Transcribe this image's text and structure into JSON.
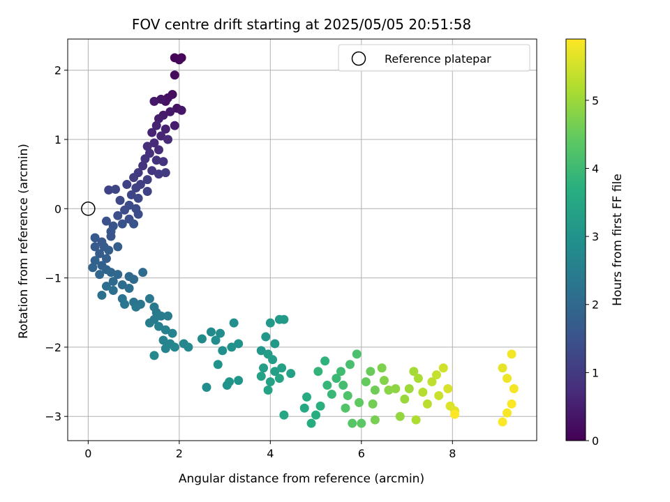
{
  "chart_data": {
    "type": "scatter",
    "title": "FOV centre drift starting at 2025/05/05 20:51:58",
    "xlabel": "Angular distance from reference (arcmin)",
    "ylabel": "Rotation from reference (arcmin)",
    "xlim": [
      -0.45,
      9.85
    ],
    "ylim": [
      -3.35,
      2.45
    ],
    "xticks": [
      0,
      2,
      4,
      6,
      8
    ],
    "yticks": [
      -3,
      -2,
      -1,
      0,
      1,
      2
    ],
    "grid": true,
    "legend": {
      "position": "top-right",
      "entries": [
        "Reference platepar"
      ]
    },
    "reference_point": {
      "x": 0,
      "y": 0,
      "label": "Reference platepar"
    },
    "colorbar": {
      "label": "Hours from first FF file",
      "colormap": "viridis",
      "range": [
        0,
        5.9
      ],
      "ticks": [
        0,
        1,
        2,
        3,
        4,
        5
      ]
    },
    "points": [
      [
        1.9,
        2.18,
        0.05
      ],
      [
        2.05,
        2.18,
        0.05
      ],
      [
        2.0,
        2.15,
        0.1
      ],
      [
        1.9,
        1.93,
        0.15
      ],
      [
        1.85,
        1.65,
        0.2
      ],
      [
        1.75,
        1.6,
        0.25
      ],
      [
        1.7,
        1.55,
        0.3
      ],
      [
        1.6,
        1.58,
        0.35
      ],
      [
        1.45,
        1.55,
        0.4
      ],
      [
        1.95,
        1.45,
        0.3
      ],
      [
        2.05,
        1.42,
        0.35
      ],
      [
        1.8,
        1.4,
        0.4
      ],
      [
        1.65,
        1.35,
        0.45
      ],
      [
        1.55,
        1.3,
        0.5
      ],
      [
        1.9,
        1.2,
        0.45
      ],
      [
        1.7,
        1.15,
        0.55
      ],
      [
        1.5,
        1.2,
        0.6
      ],
      [
        1.4,
        1.1,
        0.6
      ],
      [
        1.6,
        1.05,
        0.65
      ],
      [
        1.75,
        1.0,
        0.7
      ],
      [
        1.45,
        0.95,
        0.7
      ],
      [
        1.3,
        0.9,
        0.75
      ],
      [
        1.55,
        0.85,
        0.75
      ],
      [
        1.35,
        0.8,
        0.8
      ],
      [
        1.25,
        0.72,
        0.85
      ],
      [
        1.5,
        0.7,
        0.85
      ],
      [
        1.65,
        0.68,
        0.9
      ],
      [
        1.2,
        0.62,
        0.9
      ],
      [
        1.4,
        0.55,
        0.95
      ],
      [
        1.1,
        0.52,
        1.0
      ],
      [
        1.55,
        0.5,
        1.0
      ],
      [
        1.7,
        0.52,
        1.05
      ],
      [
        1.0,
        0.45,
        1.05
      ],
      [
        1.3,
        0.42,
        1.1
      ],
      [
        1.15,
        0.35,
        1.1
      ],
      [
        0.85,
        0.35,
        1.15
      ],
      [
        1.05,
        0.3,
        1.15
      ],
      [
        1.3,
        0.25,
        1.2
      ],
      [
        0.45,
        0.27,
        1.2
      ],
      [
        0.6,
        0.28,
        1.25
      ],
      [
        0.95,
        0.2,
        1.25
      ],
      [
        1.1,
        0.15,
        1.3
      ],
      [
        0.7,
        0.12,
        1.3
      ],
      [
        0.9,
        0.05,
        1.35
      ],
      [
        1.05,
        0.0,
        1.35
      ],
      [
        0.8,
        -0.02,
        1.4
      ],
      [
        1.1,
        -0.08,
        1.4
      ],
      [
        0.65,
        -0.1,
        1.45
      ],
      [
        0.9,
        -0.15,
        1.45
      ],
      [
        0.4,
        -0.18,
        1.5
      ],
      [
        0.75,
        -0.22,
        1.5
      ],
      [
        1.0,
        -0.22,
        1.55
      ],
      [
        0.55,
        -0.25,
        1.55
      ],
      [
        0.5,
        -0.33,
        1.6
      ],
      [
        0.5,
        -0.4,
        1.6
      ],
      [
        0.15,
        -0.42,
        1.65
      ],
      [
        0.3,
        -0.48,
        1.65
      ],
      [
        0.15,
        -0.55,
        1.7
      ],
      [
        0.35,
        -0.55,
        1.7
      ],
      [
        0.45,
        -0.6,
        1.75
      ],
      [
        0.25,
        -0.65,
        1.75
      ],
      [
        0.65,
        -0.55,
        1.8
      ],
      [
        0.4,
        -0.72,
        1.8
      ],
      [
        0.15,
        -0.75,
        1.85
      ],
      [
        0.3,
        -0.82,
        1.85
      ],
      [
        0.1,
        -0.85,
        1.9
      ],
      [
        0.4,
        -0.88,
        1.9
      ],
      [
        0.25,
        -0.95,
        1.95
      ],
      [
        0.5,
        -0.92,
        1.95
      ],
      [
        0.65,
        -0.95,
        2.0
      ],
      [
        0.9,
        -0.98,
        2.0
      ],
      [
        0.55,
        -1.05,
        2.05
      ],
      [
        1.0,
        -1.02,
        2.05
      ],
      [
        1.2,
        -0.92,
        2.1
      ],
      [
        0.75,
        -1.1,
        2.1
      ],
      [
        0.4,
        -1.12,
        2.15
      ],
      [
        0.9,
        -1.15,
        2.15
      ],
      [
        0.55,
        -1.18,
        2.2
      ],
      [
        0.3,
        -1.25,
        2.2
      ],
      [
        0.75,
        -1.3,
        2.25
      ],
      [
        1.0,
        -1.35,
        2.25
      ],
      [
        0.8,
        -1.38,
        2.3
      ],
      [
        1.15,
        -1.38,
        2.3
      ],
      [
        1.05,
        -1.42,
        2.35
      ],
      [
        1.35,
        -1.3,
        2.35
      ],
      [
        1.45,
        -1.42,
        2.4
      ],
      [
        1.5,
        -1.5,
        2.4
      ],
      [
        1.45,
        -1.6,
        2.45
      ],
      [
        1.6,
        -1.55,
        2.45
      ],
      [
        1.75,
        -1.55,
        2.5
      ],
      [
        1.35,
        -1.65,
        2.5
      ],
      [
        1.55,
        -1.7,
        2.55
      ],
      [
        1.7,
        -1.75,
        2.55
      ],
      [
        1.85,
        -1.8,
        2.6
      ],
      [
        1.65,
        -1.9,
        2.6
      ],
      [
        1.8,
        -1.95,
        2.65
      ],
      [
        1.7,
        -2.02,
        2.65
      ],
      [
        1.9,
        -2.0,
        2.7
      ],
      [
        2.1,
        -1.95,
        2.7
      ],
      [
        2.2,
        -2.0,
        2.75
      ],
      [
        1.45,
        -2.12,
        2.75
      ],
      [
        2.5,
        -1.88,
        2.8
      ],
      [
        2.7,
        -1.78,
        2.8
      ],
      [
        2.9,
        -1.8,
        2.85
      ],
      [
        2.8,
        -1.9,
        2.85
      ],
      [
        2.6,
        -2.58,
        2.85
      ],
      [
        2.95,
        -2.05,
        2.9
      ],
      [
        3.2,
        -1.65,
        2.9
      ],
      [
        3.3,
        -1.95,
        2.95
      ],
      [
        3.15,
        -2.0,
        2.95
      ],
      [
        2.85,
        -2.25,
        3.0
      ],
      [
        3.05,
        -2.55,
        3.0
      ],
      [
        3.1,
        -2.5,
        3.05
      ],
      [
        3.3,
        -2.48,
        3.05
      ],
      [
        3.8,
        -2.05,
        3.1
      ],
      [
        3.9,
        -1.85,
        3.1
      ],
      [
        4.0,
        -1.65,
        3.15
      ],
      [
        4.2,
        -1.6,
        3.15
      ],
      [
        4.3,
        -1.6,
        3.2
      ],
      [
        4.1,
        -1.95,
        3.2
      ],
      [
        3.95,
        -2.1,
        3.25
      ],
      [
        4.05,
        -2.18,
        3.25
      ],
      [
        3.85,
        -2.3,
        3.3
      ],
      [
        4.1,
        -2.35,
        3.3
      ],
      [
        4.25,
        -2.3,
        3.35
      ],
      [
        4.45,
        -2.38,
        3.35
      ],
      [
        3.8,
        -2.42,
        3.4
      ],
      [
        4.0,
        -2.5,
        3.4
      ],
      [
        4.2,
        -2.45,
        3.45
      ],
      [
        3.95,
        -2.62,
        3.45
      ],
      [
        4.3,
        -2.98,
        3.5
      ],
      [
        4.75,
        -2.88,
        3.55
      ],
      [
        4.8,
        -2.72,
        3.6
      ],
      [
        4.9,
        -3.1,
        3.65
      ],
      [
        5.0,
        -2.98,
        3.7
      ],
      [
        5.1,
        -2.85,
        3.75
      ],
      [
        5.2,
        -2.2,
        3.8
      ],
      [
        5.05,
        -2.35,
        3.85
      ],
      [
        5.25,
        -2.55,
        3.9
      ],
      [
        5.35,
        -2.68,
        3.95
      ],
      [
        5.45,
        -2.45,
        4.0
      ],
      [
        5.55,
        -2.35,
        4.05
      ],
      [
        5.6,
        -2.55,
        4.1
      ],
      [
        5.75,
        -2.25,
        4.15
      ],
      [
        5.9,
        -2.1,
        4.2
      ],
      [
        5.7,
        -2.7,
        4.25
      ],
      [
        5.65,
        -2.88,
        4.3
      ],
      [
        5.8,
        -3.1,
        4.35
      ],
      [
        6.0,
        -3.1,
        4.4
      ],
      [
        5.95,
        -2.8,
        4.45
      ],
      [
        6.1,
        -2.5,
        4.5
      ],
      [
        6.2,
        -2.35,
        4.55
      ],
      [
        6.3,
        -2.62,
        4.6
      ],
      [
        6.25,
        -2.82,
        4.65
      ],
      [
        6.3,
        -3.05,
        4.7
      ],
      [
        6.45,
        -2.3,
        4.75
      ],
      [
        6.5,
        -2.48,
        4.8
      ],
      [
        6.6,
        -2.62,
        4.85
      ],
      [
        6.75,
        -2.6,
        4.9
      ],
      [
        6.85,
        -3.0,
        4.95
      ],
      [
        6.95,
        -2.75,
        5.0
      ],
      [
        7.05,
        -2.6,
        5.05
      ],
      [
        7.15,
        -2.35,
        5.1
      ],
      [
        7.25,
        -2.45,
        5.15
      ],
      [
        7.2,
        -3.05,
        5.2
      ],
      [
        7.35,
        -2.65,
        5.25
      ],
      [
        7.45,
        -2.82,
        5.3
      ],
      [
        7.55,
        -2.5,
        5.35
      ],
      [
        7.65,
        -2.4,
        5.4
      ],
      [
        7.7,
        -2.7,
        5.45
      ],
      [
        7.8,
        -2.3,
        5.5
      ],
      [
        7.9,
        -2.6,
        5.55
      ],
      [
        7.95,
        -2.85,
        5.6
      ],
      [
        8.05,
        -2.92,
        5.65
      ],
      [
        9.1,
        -2.3,
        5.7
      ],
      [
        9.2,
        -2.45,
        5.75
      ],
      [
        9.3,
        -2.1,
        5.8
      ],
      [
        9.35,
        -2.6,
        5.82
      ],
      [
        9.2,
        -2.95,
        5.85
      ],
      [
        9.1,
        -3.08,
        5.88
      ],
      [
        9.3,
        -2.82,
        5.9
      ],
      [
        8.05,
        -2.97,
        5.88
      ]
    ]
  }
}
